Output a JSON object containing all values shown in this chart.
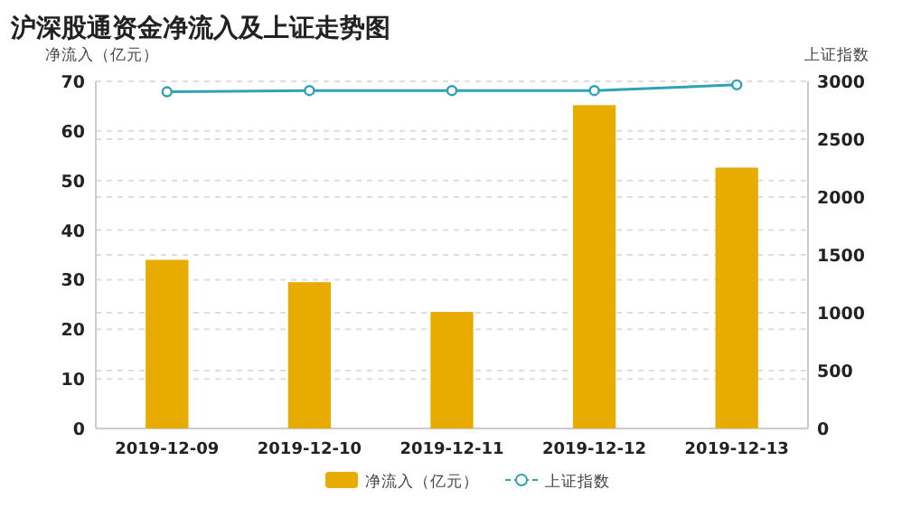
{
  "chart_data": {
    "type": "bar",
    "title": "沪深股通资金净流入及上证走势图",
    "ylabel": "净流入（亿元）",
    "y2label": "上证指数",
    "categories": [
      "2019-12-09",
      "2019-12-10",
      "2019-12-11",
      "2019-12-12",
      "2019-12-13"
    ],
    "series": [
      {
        "name": "净流入（亿元）",
        "color": "#e8ac00",
        "values": [
          34,
          29.5,
          23.5,
          65.2,
          52.6
        ]
      },
      {
        "name": "上证指数",
        "type": "line",
        "axis": "y2",
        "color": "#2fa3b5",
        "marker": "circle",
        "values": [
          2910,
          2920,
          2920,
          2920,
          2970
        ]
      }
    ],
    "ylim": [
      0,
      70
    ],
    "yticks": [
      0,
      10,
      20,
      30,
      40,
      50,
      60,
      70
    ],
    "y2lim": [
      0,
      3000
    ],
    "y2ticks": [
      0,
      500,
      1000,
      1500,
      2000,
      2500,
      3000
    ],
    "grid": true,
    "legend": "bottom"
  }
}
